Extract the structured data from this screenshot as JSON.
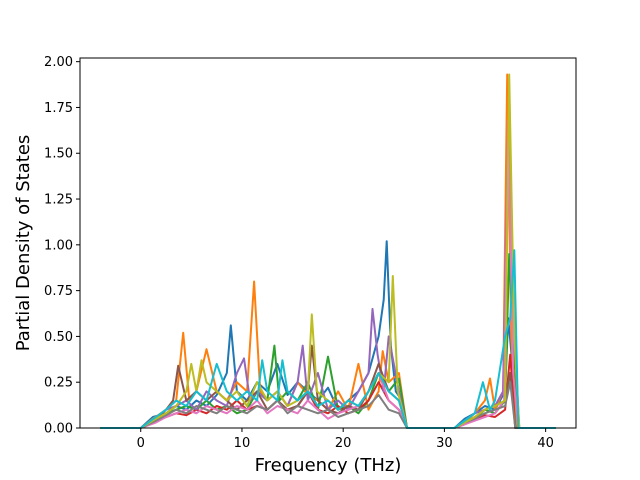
{
  "chart_data": {
    "type": "line",
    "title": "",
    "xlabel": "Frequency (THz)",
    "ylabel": "Partial Density of States",
    "xlim": [
      -6,
      43
    ],
    "ylim": [
      0,
      2.02
    ],
    "xticks": [
      {
        "value": 0,
        "label": "0"
      },
      {
        "value": 10,
        "label": "10"
      },
      {
        "value": 20,
        "label": "20"
      },
      {
        "value": 30,
        "label": "30"
      },
      {
        "value": 40,
        "label": "40"
      }
    ],
    "yticks": [
      {
        "value": 0.0,
        "label": "0.00"
      },
      {
        "value": 0.25,
        "label": "0.25"
      },
      {
        "value": 0.5,
        "label": "0.50"
      },
      {
        "value": 0.75,
        "label": "0.75"
      },
      {
        "value": 1.0,
        "label": "1.00"
      },
      {
        "value": 1.25,
        "label": "1.25"
      },
      {
        "value": 1.5,
        "label": "1.50"
      },
      {
        "value": 1.75,
        "label": "1.75"
      },
      {
        "value": 2.0,
        "label": "2.00"
      }
    ],
    "grid": false,
    "legend": "none",
    "series": [
      {
        "color": "#1f77b4",
        "x": [
          -4,
          0,
          1.2,
          2.5,
          3.5,
          4.5,
          5.5,
          6.5,
          7.5,
          8.5,
          8.9,
          9.5,
          10.5,
          11.5,
          12.5,
          13.5,
          14.5,
          15.5,
          16.5,
          17.5,
          18.5,
          19.5,
          20.5,
          21.5,
          22.5,
          23.5,
          24.0,
          24.3,
          24.7,
          25.2,
          25.8,
          26.3,
          31,
          32,
          33,
          34,
          35,
          36,
          36.3,
          36.8,
          37.3,
          41
        ],
        "y": [
          0,
          0,
          0.06,
          0.08,
          0.12,
          0.1,
          0.15,
          0.12,
          0.18,
          0.3,
          0.56,
          0.2,
          0.15,
          0.25,
          0.2,
          0.35,
          0.18,
          0.25,
          0.2,
          0.15,
          0.22,
          0.1,
          0.15,
          0.2,
          0.3,
          0.5,
          0.7,
          1.02,
          0.45,
          0.2,
          0.15,
          0,
          0,
          0.05,
          0.08,
          0.12,
          0.1,
          0.2,
          0.6,
          0.3,
          0,
          0
        ]
      },
      {
        "color": "#ff7f0e",
        "x": [
          -4,
          0,
          1.2,
          2.5,
          3.5,
          4.2,
          4.8,
          5.5,
          6.5,
          7.5,
          8.5,
          9.5,
          10.5,
          11.2,
          11.8,
          12.5,
          13.5,
          14.5,
          15.5,
          16.5,
          17.5,
          18.5,
          19.5,
          20.5,
          21.5,
          22.5,
          23.5,
          23.9,
          24.5,
          25.5,
          26.3,
          31,
          32,
          33,
          34,
          34.5,
          35,
          35.8,
          36.2,
          36.6,
          37.1,
          41
        ],
        "y": [
          0,
          0,
          0.05,
          0.1,
          0.15,
          0.52,
          0.15,
          0.2,
          0.43,
          0.2,
          0.15,
          0.25,
          0.2,
          0.8,
          0.2,
          0.15,
          0.2,
          0.12,
          0.25,
          0.18,
          0.15,
          0.1,
          0.2,
          0.1,
          0.35,
          0.1,
          0.2,
          0.42,
          0.25,
          0.3,
          0,
          0,
          0.03,
          0.08,
          0.15,
          0.27,
          0.1,
          0.2,
          1.93,
          0.5,
          0,
          0
        ]
      },
      {
        "color": "#2ca02c",
        "x": [
          -4,
          0,
          1.5,
          2.5,
          3.5,
          4.5,
          5.5,
          6.5,
          7.5,
          8.5,
          9.5,
          10.5,
          11.5,
          12.5,
          13.2,
          13.7,
          14.5,
          15.5,
          16.5,
          17.5,
          18.5,
          19.5,
          20.5,
          21.5,
          22.5,
          23.5,
          24.5,
          25.5,
          26.3,
          31,
          32,
          33,
          34,
          35,
          36,
          36.4,
          36.9,
          37.3,
          41
        ],
        "y": [
          0,
          0,
          0.05,
          0.08,
          0.1,
          0.12,
          0.1,
          0.15,
          0.1,
          0.12,
          0.08,
          0.1,
          0.2,
          0.15,
          0.45,
          0.15,
          0.2,
          0.15,
          0.25,
          0.1,
          0.39,
          0.1,
          0.12,
          0.08,
          0.15,
          0.3,
          0.2,
          0.27,
          0,
          0,
          0.03,
          0.05,
          0.1,
          0.08,
          0.15,
          0.95,
          0.4,
          0,
          0
        ]
      },
      {
        "color": "#d62728",
        "x": [
          -4,
          0,
          1.5,
          2.5,
          3.5,
          4.5,
          5.5,
          6.5,
          7.5,
          8.5,
          9.5,
          10.5,
          11.5,
          12.5,
          13.5,
          14.5,
          15.5,
          16.5,
          17.5,
          18.5,
          19.5,
          20.5,
          21.5,
          22.5,
          23.5,
          24.5,
          25.5,
          26.3,
          31,
          32,
          33,
          34,
          35,
          36,
          36.5,
          37,
          41
        ],
        "y": [
          0,
          0,
          0.04,
          0.06,
          0.08,
          0.07,
          0.1,
          0.08,
          0.12,
          0.1,
          0.15,
          0.1,
          0.12,
          0.1,
          0.15,
          0.1,
          0.12,
          0.2,
          0.1,
          0.08,
          0.12,
          0.08,
          0.1,
          0.15,
          0.25,
          0.15,
          0.1,
          0,
          0,
          0.02,
          0.05,
          0.07,
          0.06,
          0.1,
          0.4,
          0,
          0
        ]
      },
      {
        "color": "#9467bd",
        "x": [
          -4,
          0,
          1.5,
          2.5,
          3.5,
          4.5,
          5.5,
          6.5,
          7.5,
          8.5,
          9.5,
          10.2,
          10.8,
          11.5,
          12.5,
          13.5,
          14.5,
          15.5,
          16.0,
          16.5,
          17.5,
          18.5,
          19.5,
          20.5,
          21.5,
          22.5,
          22.9,
          23.4,
          24.0,
          24.5,
          25.5,
          26.3,
          31,
          32,
          33,
          34,
          35,
          35.8,
          36.3,
          36.9,
          37.4,
          41
        ],
        "y": [
          0,
          0,
          0.05,
          0.1,
          0.12,
          0.15,
          0.1,
          0.2,
          0.15,
          0.12,
          0.3,
          0.38,
          0.15,
          0.2,
          0.15,
          0.2,
          0.12,
          0.25,
          0.45,
          0.15,
          0.3,
          0.1,
          0.15,
          0.1,
          0.2,
          0.3,
          0.65,
          0.4,
          0.2,
          0.5,
          0.2,
          0,
          0,
          0.04,
          0.08,
          0.1,
          0.12,
          0.2,
          1.65,
          0.5,
          0,
          0
        ]
      },
      {
        "color": "#8c564b",
        "x": [
          -4,
          0,
          1.5,
          2.5,
          3.2,
          3.7,
          4.5,
          5.5,
          6.5,
          7.5,
          8.5,
          9.5,
          10.5,
          11.5,
          12.5,
          13.5,
          14.5,
          15.5,
          16.5,
          16.9,
          17.5,
          18.5,
          19.5,
          20.5,
          21.5,
          22.5,
          23.5,
          24.5,
          25.5,
          26.3,
          31,
          32,
          33,
          34,
          35,
          36,
          36.5,
          37,
          41
        ],
        "y": [
          0,
          0,
          0.05,
          0.1,
          0.15,
          0.34,
          0.15,
          0.2,
          0.15,
          0.2,
          0.15,
          0.1,
          0.15,
          0.2,
          0.1,
          0.15,
          0.1,
          0.12,
          0.2,
          0.45,
          0.15,
          0.1,
          0.08,
          0.12,
          0.1,
          0.2,
          0.35,
          0.2,
          0.15,
          0,
          0,
          0.03,
          0.06,
          0.1,
          0.12,
          0.15,
          0.3,
          0,
          0
        ]
      },
      {
        "color": "#e377c2",
        "x": [
          -4,
          0,
          1.5,
          2.5,
          3.5,
          4.5,
          5.5,
          6.5,
          7.5,
          8.5,
          9.5,
          10.5,
          11.5,
          12.5,
          13.5,
          14.5,
          15.5,
          16.5,
          17.5,
          18.5,
          19.5,
          20.5,
          21.5,
          22.5,
          23.5,
          24.5,
          25.5,
          26.3,
          31,
          32,
          33,
          34,
          35,
          35.9,
          36.3,
          36.8,
          37.3,
          41
        ],
        "y": [
          0,
          0,
          0.03,
          0.06,
          0.08,
          0.1,
          0.08,
          0.12,
          0.1,
          0.08,
          0.12,
          0.1,
          0.15,
          0.08,
          0.12,
          0.1,
          0.08,
          0.15,
          0.1,
          0.05,
          0.08,
          0.1,
          0.12,
          0.2,
          0.3,
          0.15,
          0.1,
          0,
          0,
          0.02,
          0.04,
          0.06,
          0.08,
          0.15,
          1.68,
          0.3,
          0,
          0
        ]
      },
      {
        "color": "#7f7f7f",
        "x": [
          -4,
          0,
          1.5,
          2.5,
          3.5,
          4.5,
          5.5,
          6.5,
          7.5,
          8.5,
          9.5,
          10.5,
          11.5,
          12.5,
          13.5,
          14.5,
          15.5,
          16.5,
          17.5,
          18.5,
          19.5,
          20.5,
          21.5,
          22.5,
          23.5,
          24.5,
          25.5,
          26.3,
          31,
          32,
          33,
          34,
          35,
          36,
          36.5,
          37,
          41
        ],
        "y": [
          0,
          0,
          0.04,
          0.07,
          0.1,
          0.08,
          0.12,
          0.1,
          0.08,
          0.12,
          0.1,
          0.08,
          0.12,
          0.1,
          0.15,
          0.08,
          0.12,
          0.1,
          0.08,
          0.1,
          0.06,
          0.08,
          0.1,
          0.12,
          0.18,
          0.1,
          0.08,
          0,
          0,
          0.03,
          0.05,
          0.08,
          0.1,
          0.12,
          0.25,
          0,
          0
        ]
      },
      {
        "color": "#bcbd22",
        "x": [
          -4,
          0,
          1.5,
          2.5,
          3.5,
          4.5,
          5.0,
          5.5,
          6.0,
          6.5,
          7.5,
          8.5,
          9.5,
          10.5,
          11.5,
          12.5,
          13.5,
          14.5,
          15.5,
          16.5,
          16.9,
          17.4,
          18.5,
          19.5,
          20.5,
          21.5,
          22.5,
          23.5,
          24.5,
          24.9,
          25.4,
          26.3,
          31,
          32,
          33,
          34,
          35,
          36,
          36.4,
          36.9,
          37.4,
          41
        ],
        "y": [
          0,
          0,
          0.05,
          0.08,
          0.12,
          0.2,
          0.35,
          0.2,
          0.37,
          0.25,
          0.2,
          0.15,
          0.2,
          0.12,
          0.25,
          0.15,
          0.2,
          0.12,
          0.15,
          0.2,
          0.62,
          0.2,
          0.15,
          0.1,
          0.15,
          0.12,
          0.2,
          0.3,
          0.25,
          0.83,
          0.2,
          0,
          0,
          0.03,
          0.06,
          0.1,
          0.12,
          0.15,
          1.93,
          0.5,
          0,
          0
        ]
      },
      {
        "color": "#17becf",
        "x": [
          -4,
          0,
          1.5,
          2.5,
          3.5,
          4.5,
          5.5,
          6.5,
          7.5,
          8.5,
          9.5,
          10.5,
          11.5,
          12.0,
          12.5,
          13.5,
          14.0,
          14.5,
          15.5,
          16.5,
          17.5,
          18.5,
          19.5,
          20.5,
          21.5,
          22.5,
          23.5,
          24.5,
          25.5,
          26.3,
          31,
          32,
          33,
          33.8,
          34.5,
          35,
          36,
          36.5,
          36.9,
          37.3,
          41
        ],
        "y": [
          0,
          0,
          0.06,
          0.1,
          0.15,
          0.12,
          0.2,
          0.15,
          0.35,
          0.2,
          0.15,
          0.2,
          0.15,
          0.37,
          0.2,
          0.15,
          0.37,
          0.2,
          0.15,
          0.2,
          0.12,
          0.15,
          0.1,
          0.15,
          0.12,
          0.2,
          0.3,
          0.2,
          0.15,
          0,
          0,
          0.04,
          0.08,
          0.25,
          0.1,
          0.15,
          0.5,
          0.6,
          0.97,
          0,
          0
        ]
      }
    ]
  }
}
